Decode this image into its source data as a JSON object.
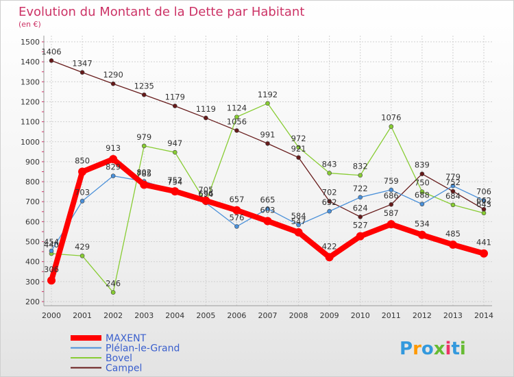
{
  "chart_data": {
    "type": "line",
    "title": "Evolution du Montant de la Dette par Habitant",
    "subtitle": "(en €)",
    "xlabel": "",
    "ylabel": "",
    "ylim": [
      200,
      1500
    ],
    "yticks": [
      200,
      300,
      400,
      500,
      600,
      700,
      800,
      900,
      1000,
      1100,
      1200,
      1300,
      1400,
      1500
    ],
    "categories": [
      "2000",
      "2001",
      "2002",
      "2003",
      "2004",
      "2005",
      "2006",
      "2007",
      "2008",
      "2009",
      "2010",
      "2011",
      "2012",
      "2013",
      "2014"
    ],
    "grid": true,
    "legend_position": "bottom-left",
    "series": [
      {
        "name": "MAXENT",
        "color": "#ff0000",
        "values": [
          306,
          850,
          913,
          785,
          752,
          705,
          657,
          603,
          547,
          422,
          527,
          587,
          534,
          485,
          441
        ]
      },
      {
        "name": "Plélan-le-Grand",
        "color": "#4a90d9",
        "values": [
          454,
          703,
          829,
          802,
          754,
          694,
          576,
          665,
          584,
          652,
          722,
          759,
          688,
          779,
          706
        ]
      },
      {
        "name": "Bovel",
        "color": "#88cc33",
        "values": [
          440,
          429,
          246,
          979,
          947,
          696,
          1124,
          1192,
          972,
          843,
          832,
          1076,
          750,
          684,
          643
        ]
      },
      {
        "name": "Campel",
        "color": "#661a1a",
        "values": [
          1406,
          1347,
          1290,
          1235,
          1179,
          1119,
          1056,
          991,
          921,
          702,
          624,
          686,
          839,
          752,
          662
        ]
      }
    ]
  },
  "branding": {
    "logo_text": "Proxiti",
    "logo_colors": [
      "#3399dd",
      "#ff9900",
      "#66bb33",
      "#ee3366"
    ]
  }
}
